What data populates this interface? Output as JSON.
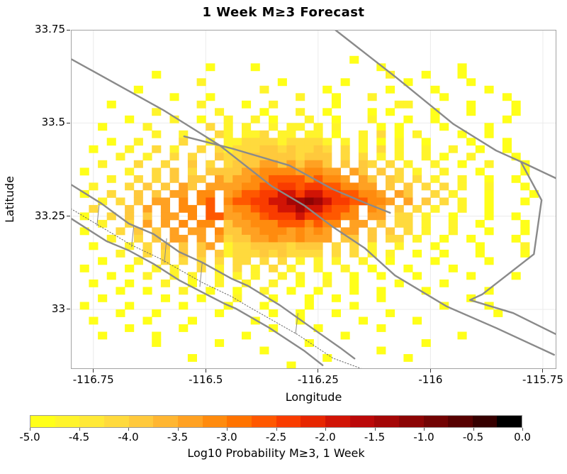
{
  "title": "1 Week M≥3 Forecast",
  "axes": {
    "xlabel": "Longitude",
    "ylabel": "Latitude",
    "xticks": [
      -116.75,
      -116.5,
      -116.25,
      -116,
      -115.75
    ],
    "xtick_labels": [
      "-116.75",
      "-116.5",
      "-116.25",
      "-116",
      "-115.75"
    ],
    "yticks": [
      33.75,
      33.5,
      33.25,
      33
    ],
    "ytick_labels": [
      "33.75",
      "33.5",
      "33.25",
      "33"
    ],
    "xlim": [
      -116.8,
      -115.72
    ],
    "ylim": [
      32.84,
      33.75
    ],
    "grid_color": "#ebebeb",
    "border_color": "#a3a3a3"
  },
  "colorbar": {
    "label": "Log10 Probability M≥3, 1 Week",
    "tick_labels": [
      "-5.0",
      "-4.5",
      "-4.0",
      "-3.5",
      "-3.0",
      "-2.5",
      "-2.0",
      "-1.5",
      "-1.0",
      "-0.5",
      "0.0"
    ],
    "vmin": -5,
    "vmax": 0,
    "colors": [
      "#ffff19",
      "#fff42b",
      "#ffe937",
      "#ffda3d",
      "#ffc93c",
      "#ffb632",
      "#ffa122",
      "#ff8b0e",
      "#ff7300",
      "#ff5800",
      "#f93c00",
      "#e72600",
      "#d11405",
      "#bb0808",
      "#a40606",
      "#8c0404",
      "#720303",
      "#570101",
      "#360000",
      "#000000"
    ]
  },
  "chart_data": {
    "type": "heatmap",
    "title": "1 Week M≥3 Forecast",
    "xlabel": "Longitude",
    "ylabel": "Latitude",
    "value_label": "Log10 Probability M≥3, 1 Week",
    "grid": {
      "lon0": -116.8,
      "lat0": 33.74,
      "dlon": 0.02,
      "dlat": 0.02,
      "levels": {
        "0": -4.9,
        "1": -4.55,
        "2": -4.2,
        "3": -3.8,
        "4": -3.45,
        "5": -3.05,
        "6": -2.65,
        "7": -2.3,
        "8": -1.9,
        "9": -1.5,
        "a": -1.1
      },
      "rows": [
        "....................................................",
        "....................................................",
        "....................................................",
        "...............................0....................",
        "...............0....0.............0........0........",
        ".........0.........................1...0...0........",
        "..............1........0......0......0......0.......",
        ".......0.............1......0......0....0.....0.....",
        "...........0...0.........1...0...1.......0......0...",
        "....0.........1....0..1......0......11......0....0..",
        ".........1......1....0...1..0....0.0....0...0....0..",
        "......0....1..0..1..1.0...1..0...1...0..0.......0...",
        "...0....1......2.1.1..1.11.1.1....0.0....0....0.....",
        ".........1..1...21.112.11.11.0..1.2.0.1....0..0.....",
        "....0..1....2..1.112222122221.1.1.0.1..0....0...0...",
        "..0...1..2.1..2.2122233232232.2.1.2.1..1..1..0..0...",
        ".....1..1..2.2..3223333332333.2.2.1.1..1.0..1....0..",
        "...1...2..2..3.2.233344343443.3.32.2.1..1..0..1...0.",
        ".0....1..2.3.2.333344555545544.43.3.2.1..1...0....0.",
        "....1..2.2.3.33.434455666656554.43.32.2.1..1..0..0..",
        "..1...2.3.3.43.4444556677677665544.3.3.2.2.1..1...0.",
        ".0..2..3.3.44.55.456677887887766554.43..2.1...0....0",
        "...1.2.3.44.5.56.566778899a987766554.4.3.2.1..0...0.",
        "..2...3.4.4.55.6.455677889887665.54.3.2.1..1..0.....",
        ".0..2.3.3.44.5.66445567778776655.44.22.1..0...0..0..",
        "...1..2.4.4.5.55.3445556665655.44.3.22.1..1..0....0.",
        ".0...2.3.3.4.44.5334455545454.44.3.3.2.1..1...0...0.",
        "....1..2.3.44.4.4233445445444.33.3.22.1..0..0....0..",
        "..0...1.2.3.3.34.12233332333.2.2.1..1...0....0....1.",
        ".....1..2.2.3.3.312223232222.2.2.1.1..0..0...0....0.",
        "...0...1..2.2.2.2.22.2.2.1.1.1..1..0....0.....0.....",
        ".0....0..1.1..2.1.2.1.2.1..1..1..0...0....0.........",
        "....0...1..1.1..1.1.1..1.1..0..0..0...0.....0....0..",
        "..0...0...1..0..1..1..1..0..1..0....0....0..........",
        ".....0..0...1..0..0..1..0..0...0..0....0......0.....",
        "...0......0...0...1...0...0..0....0.........0.......",
        ".0....0.....0....0...0....0....0.........0....0.....",
        ".....0...0......0.....0..0...0.....0...........0....",
        "..0.....0....0......0....0......0.....0.............",
        "......0.....0.........0....0......0.................",
        "...0.....0.........0..........0............0........",
        ".........0......0.........0............0............",
        ".....................0............0.................",
        ".............0..............0........0..............",
        "........................0..........................."
      ]
    },
    "faults": [
      {
        "name": "fault-line-northwest-long",
        "width": 2.4,
        "points": [
          [
            -116.8,
            33.672
          ],
          [
            -116.595,
            33.535
          ],
          [
            -116.469,
            33.44
          ],
          [
            -116.354,
            33.331
          ],
          [
            -116.28,
            33.278
          ],
          [
            -116.217,
            33.221
          ],
          [
            -116.146,
            33.164
          ],
          [
            -116.079,
            33.091
          ],
          [
            -115.964,
            33.008
          ],
          [
            -115.854,
            32.95
          ],
          [
            -115.725,
            32.878
          ]
        ]
      },
      {
        "name": "fault-line-central-upper",
        "width": 2.4,
        "points": [
          [
            -116.548,
            33.464
          ],
          [
            -116.437,
            33.43
          ],
          [
            -116.314,
            33.386
          ],
          [
            -116.217,
            33.322
          ],
          [
            -116.142,
            33.284
          ],
          [
            -116.09,
            33.259
          ]
        ]
      },
      {
        "name": "fault-line-northeast",
        "width": 2.4,
        "points": [
          [
            -116.212,
            33.75
          ],
          [
            -116.075,
            33.621
          ],
          [
            -115.949,
            33.497
          ],
          [
            -115.854,
            33.426
          ],
          [
            -115.799,
            33.396
          ],
          [
            -115.718,
            33.35
          ]
        ]
      },
      {
        "name": "fault-line-east-branch",
        "width": 2.4,
        "points": [
          [
            -115.799,
            33.396
          ],
          [
            -115.753,
            33.293
          ],
          [
            -115.77,
            33.148
          ],
          [
            -115.885,
            33.04
          ],
          [
            -115.912,
            33.025
          ],
          [
            -115.816,
            32.99
          ],
          [
            -115.712,
            32.928
          ]
        ]
      },
      {
        "name": "fault-zone-southwest-north-strand",
        "width": 2.4,
        "points": [
          [
            -116.8,
            33.335
          ],
          [
            -116.732,
            33.284
          ],
          [
            -116.671,
            33.23
          ],
          [
            -116.616,
            33.202
          ],
          [
            -116.559,
            33.154
          ],
          [
            -116.508,
            33.126
          ],
          [
            -116.442,
            33.082
          ],
          [
            -116.406,
            33.063
          ],
          [
            -116.335,
            33.011
          ],
          [
            -116.264,
            32.95
          ],
          [
            -116.201,
            32.897
          ],
          [
            -116.169,
            32.868
          ]
        ]
      },
      {
        "name": "fault-zone-southwest-dotted-trace",
        "width": 1,
        "dotted": true,
        "color": "#666666",
        "points": [
          [
            -116.8,
            33.27
          ],
          [
            -116.666,
            33.173
          ],
          [
            -116.6,
            33.135
          ],
          [
            -116.508,
            33.072
          ],
          [
            -116.442,
            33.034
          ],
          [
            -116.406,
            33.008
          ],
          [
            -116.295,
            32.932
          ],
          [
            -116.217,
            32.869
          ],
          [
            -116.138,
            32.834
          ]
        ]
      },
      {
        "name": "fault-zone-southwest-south-strand",
        "width": 2.4,
        "points": [
          [
            -116.8,
            33.244
          ],
          [
            -116.721,
            33.183
          ],
          [
            -116.671,
            33.158
          ],
          [
            -116.616,
            33.122
          ],
          [
            -116.559,
            33.078
          ],
          [
            -116.508,
            33.046
          ],
          [
            -116.458,
            33.015
          ],
          [
            -116.433,
            33.002
          ],
          [
            -116.358,
            32.95
          ],
          [
            -116.28,
            32.888
          ],
          [
            -116.24,
            32.85
          ]
        ]
      },
      {
        "name": "fault-zone-rung",
        "width": 1,
        "color": "#888888",
        "points": [
          [
            -116.737,
            33.282
          ],
          [
            -116.742,
            33.225
          ]
        ]
      },
      {
        "name": "fault-zone-rung",
        "width": 1,
        "color": "#888888",
        "points": [
          [
            -116.66,
            33.225
          ],
          [
            -116.665,
            33.168
          ]
        ]
      },
      {
        "name": "fault-zone-rung",
        "width": 1,
        "color": "#888888",
        "points": [
          [
            -116.587,
            33.19
          ],
          [
            -116.592,
            33.126
          ]
        ]
      },
      {
        "name": "fault-zone-rung",
        "width": 1,
        "color": "#888888",
        "points": [
          [
            -116.508,
            33.124
          ],
          [
            -116.513,
            33.061
          ]
        ]
      },
      {
        "name": "fault-zone-rung",
        "width": 1,
        "color": "#888888",
        "points": [
          [
            -116.295,
            32.989
          ],
          [
            -116.3,
            32.935
          ]
        ]
      }
    ]
  }
}
